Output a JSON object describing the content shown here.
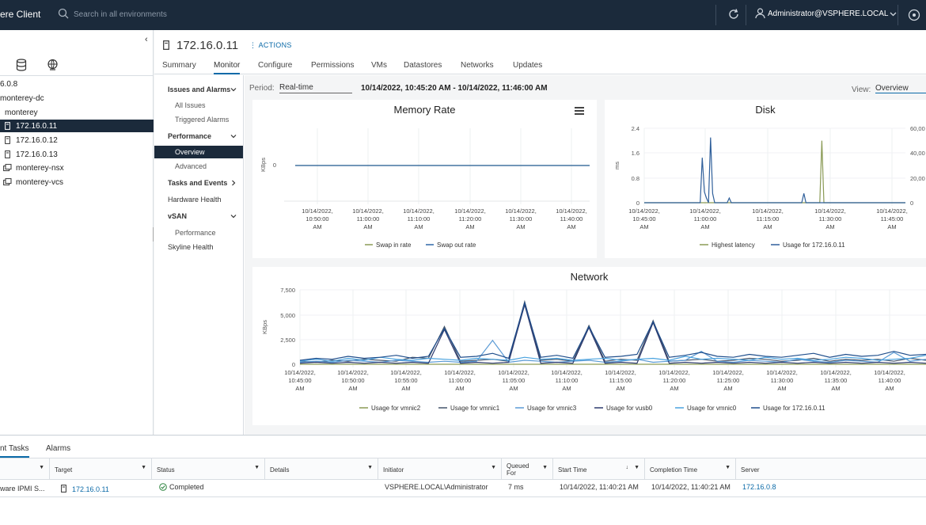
{
  "header": {
    "brand": "ere Client",
    "search_placeholder": "Search in all environments",
    "user": "Administrator@VSPHERE.LOCAL"
  },
  "tree": {
    "items": [
      {
        "label": "6.0.8"
      },
      {
        "label": "monterey-dc"
      },
      {
        "label": "monterey"
      },
      {
        "label": "172.16.0.11",
        "selected": true
      },
      {
        "label": "172.16.0.12"
      },
      {
        "label": "172.16.0.13"
      },
      {
        "label": "monterey-nsx"
      },
      {
        "label": "monterey-vcs"
      }
    ]
  },
  "object": {
    "title": "172.16.0.11",
    "actions_label": "ACTIONS"
  },
  "tabs": [
    "Summary",
    "Monitor",
    "Configure",
    "Permissions",
    "VMs",
    "Datastores",
    "Networks",
    "Updates"
  ],
  "subnav": {
    "issues": "Issues and Alarms",
    "all_issues": "All Issues",
    "triggered": "Triggered Alarms",
    "performance": "Performance",
    "overview": "Overview",
    "advanced": "Advanced",
    "tasks_events": "Tasks and Events",
    "hardware_health": "Hardware Health",
    "vsan": "vSAN",
    "vsan_performance": "Performance",
    "skyline": "Skyline Health"
  },
  "toolbar": {
    "period_label": "Period:",
    "period_value": "Real-time",
    "range": "10/14/2022, 10:45:20 AM - 10/14/2022, 11:46:00 AM",
    "view_label": "View:",
    "view_value": "Overview"
  },
  "chart_data": [
    {
      "type": "line",
      "title": "Memory Rate",
      "ylabel": "KBps",
      "yticks": [
        "0"
      ],
      "x_ticks": [
        [
          "10/14/2022,",
          "10:50:00",
          "AM"
        ],
        [
          "10/14/2022,",
          "11:00:00",
          "AM"
        ],
        [
          "10/14/2022,",
          "11:10:00",
          "AM"
        ],
        [
          "10/14/2022,",
          "11:20:00",
          "AM"
        ],
        [
          "10/14/2022,",
          "11:30:00",
          "AM"
        ],
        [
          "10/14/2022,",
          "11:40:00",
          "AM"
        ]
      ],
      "series": [
        {
          "name": "Swap in rate",
          "color": "#8a9a55",
          "values": [
            0,
            0,
            0,
            0,
            0,
            0,
            0
          ]
        },
        {
          "name": "Swap out rate",
          "color": "#2f67a8",
          "values": [
            0,
            0,
            0,
            0,
            0,
            0,
            0
          ]
        }
      ]
    },
    {
      "type": "line",
      "title": "Disk",
      "ylabel": "ms",
      "ylim": [
        0,
        2.4
      ],
      "yticks": [
        "2.4",
        "1.6",
        "0.8",
        "0"
      ],
      "yticks_right": [
        "60,00",
        "40,00",
        "20,00",
        "0"
      ],
      "x_ticks": [
        [
          "10/14/2022,",
          "10:45:00",
          "AM"
        ],
        [
          "10/14/2022,",
          "11:00:00",
          "AM"
        ],
        [
          "10/14/2022,",
          "11:15:00",
          "AM"
        ],
        [
          "10/14/2022,",
          "11:30:00",
          "AM"
        ],
        [
          "10/14/2022,",
          "11:45:00",
          "AM"
        ]
      ],
      "series": [
        {
          "name": "Highest latency",
          "color": "#8a9a55",
          "values": [
            0,
            0,
            0,
            0,
            0,
            0,
            0,
            0,
            0,
            0,
            0,
            0,
            0,
            0,
            0,
            0,
            0,
            0,
            0,
            0,
            0,
            0,
            0,
            0,
            0,
            0,
            0,
            0,
            0,
            0,
            0,
            0,
            0,
            0,
            0,
            0,
            0,
            0,
            0,
            0,
            0,
            0,
            0,
            0,
            0,
            0,
            0,
            0,
            0,
            0,
            0,
            0,
            0,
            0,
            0,
            0,
            0,
            0,
            0,
            0,
            0,
            0,
            0,
            0,
            0,
            0,
            0,
            0,
            0,
            0,
            0,
            0,
            0,
            0,
            0,
            0,
            0,
            0,
            0,
            0,
            0,
            0,
            0,
            0,
            0,
            2.0,
            0,
            0,
            0,
            0,
            0,
            0,
            0,
            0,
            0,
            0,
            0,
            0,
            0,
            0,
            0,
            0,
            0,
            0,
            0,
            0,
            0,
            0,
            0,
            0,
            0,
            0,
            0,
            0,
            0,
            0,
            0,
            0,
            0,
            0,
            0,
            0,
            0,
            0,
            0,
            0
          ]
        },
        {
          "name": "Usage for 172.16.0.11",
          "color": "#2f5f9a",
          "values": [
            0,
            0,
            0,
            0,
            0,
            0,
            0,
            0,
            0,
            0,
            0,
            0,
            0,
            0,
            0,
            0,
            0,
            0,
            0,
            0,
            0,
            0,
            0,
            0,
            0,
            0,
            0,
            0,
            1.45,
            0.35,
            0.15,
            0,
            2.1,
            0.3,
            0,
            0,
            0,
            0,
            0,
            0,
            0,
            0.15,
            0,
            0,
            0,
            0,
            0,
            0,
            0,
            0,
            0,
            0,
            0,
            0,
            0,
            0,
            0,
            0,
            0,
            0,
            0,
            0,
            0,
            0,
            0,
            0,
            0,
            0,
            0,
            0,
            0,
            0,
            0,
            0,
            0,
            0,
            0,
            0.3,
            0,
            0,
            0,
            0,
            0,
            0,
            0,
            0,
            0,
            0,
            0,
            0,
            0,
            0,
            0,
            0,
            0,
            0,
            0,
            0,
            0,
            0,
            0,
            0,
            0,
            0,
            0,
            0,
            0,
            0,
            0,
            0,
            0,
            0,
            0,
            0,
            0,
            0,
            0,
            0,
            0,
            0,
            0,
            0,
            0,
            0,
            0,
            0,
            0
          ]
        }
      ]
    },
    {
      "type": "line",
      "title": "Network",
      "ylabel": "KBps",
      "ylim": [
        0,
        7500
      ],
      "yticks": [
        "7,500",
        "5,000",
        "2,500",
        "0"
      ],
      "x_ticks": [
        [
          "10/14/2022,",
          "10:45:00",
          "AM"
        ],
        [
          "10/14/2022,",
          "10:50:00",
          "AM"
        ],
        [
          "10/14/2022,",
          "10:55:00",
          "AM"
        ],
        [
          "10/14/2022,",
          "11:00:00",
          "AM"
        ],
        [
          "10/14/2022,",
          "11:05:00",
          "AM"
        ],
        [
          "10/14/2022,",
          "11:10:00",
          "AM"
        ],
        [
          "10/14/2022,",
          "11:15:00",
          "AM"
        ],
        [
          "10/14/2022,",
          "11:20:00",
          "AM"
        ],
        [
          "10/14/2022,",
          "11:25:00",
          "AM"
        ],
        [
          "10/14/2022,",
          "11:30:00",
          "AM"
        ],
        [
          "10/14/2022,",
          "11:35:00",
          "AM"
        ],
        [
          "10/14/2022,",
          "11:40:00",
          "AM"
        ],
        [
          "10/14/2022,",
          "11:45:00",
          "AM"
        ]
      ],
      "series": [
        {
          "name": "Usage for vmnic2",
          "color": "#8a9a55",
          "values": [
            0,
            0,
            0,
            0,
            0,
            0,
            0,
            0,
            0,
            0,
            0,
            0,
            0,
            0,
            0,
            0,
            0,
            0,
            0,
            0,
            0,
            0,
            0,
            0,
            0,
            0,
            0,
            0,
            0,
            0,
            0,
            0,
            0,
            0,
            0,
            0,
            0,
            0,
            0,
            0
          ]
        },
        {
          "name": "Usage for vmnic1",
          "color": "#44546a",
          "values": [
            300,
            200,
            400,
            300,
            500,
            400,
            300,
            700,
            600,
            3800,
            300,
            400,
            500,
            300,
            6300,
            400,
            500,
            300,
            3900,
            300,
            500,
            400,
            4400,
            300,
            400,
            500,
            300,
            400,
            600,
            500,
            300,
            400,
            600,
            300,
            500,
            400,
            500,
            300,
            600,
            400
          ]
        },
        {
          "name": "Usage for vmnic3",
          "color": "#5b9bd5",
          "values": [
            200,
            300,
            200,
            400,
            300,
            200,
            400,
            300,
            200,
            300,
            200,
            300,
            2400,
            200,
            400,
            300,
            200,
            300,
            400,
            200,
            300,
            500,
            200,
            300,
            400,
            1300,
            300,
            200,
            400,
            300,
            200,
            500,
            300,
            200,
            400,
            300,
            200,
            1200,
            300,
            500
          ]
        },
        {
          "name": "Usage for vusb0",
          "color": "#2e3a6e",
          "values": [
            100,
            200,
            100,
            200,
            100,
            200,
            100,
            200,
            100,
            3500,
            100,
            200,
            100,
            200,
            6000,
            100,
            200,
            100,
            3700,
            100,
            200,
            100,
            4200,
            100,
            200,
            100,
            200,
            100,
            200,
            100,
            200,
            100,
            200,
            100,
            200,
            100,
            200,
            100,
            200,
            100
          ]
        },
        {
          "name": "Usage for vmnic0",
          "color": "#4aa3df",
          "values": [
            300,
            500,
            300,
            600,
            400,
            700,
            500,
            400,
            600,
            500,
            400,
            600,
            500,
            400,
            700,
            500,
            600,
            400,
            500,
            600,
            400,
            500,
            600,
            400,
            800,
            500,
            600,
            500,
            400,
            700,
            500,
            600,
            400,
            500,
            700,
            600,
            400,
            500,
            600,
            900
          ]
        },
        {
          "name": "Usage for 172.16.0.11",
          "color": "#1f4e8c",
          "values": [
            400,
            600,
            500,
            800,
            600,
            700,
            900,
            600,
            800,
            3600,
            700,
            800,
            1100,
            600,
            6200,
            700,
            900,
            600,
            3800,
            700,
            800,
            1000,
            4300,
            700,
            900,
            1200,
            800,
            700,
            1000,
            800,
            700,
            900,
            1100,
            700,
            1000,
            800,
            900,
            1300,
            900,
            1000
          ]
        }
      ]
    }
  ],
  "bottom": {
    "tabs": [
      "nt Tasks",
      "Alarms"
    ],
    "columns": [
      "",
      "Target",
      "Status",
      "Details",
      "Initiator",
      "Queued For",
      "Start Time",
      "Completion Time",
      "Server"
    ],
    "rows": [
      {
        "task": "ware IPMI S...",
        "target": "172.16.0.11",
        "status": "Completed",
        "details": "",
        "initiator": "VSPHERE.LOCAL\\Administrator",
        "queued": "7 ms",
        "start": "10/14/2022, 11:40:21 AM",
        "completion": "10/14/2022, 11:40:21 AM",
        "server": "172.16.0.8"
      }
    ]
  }
}
